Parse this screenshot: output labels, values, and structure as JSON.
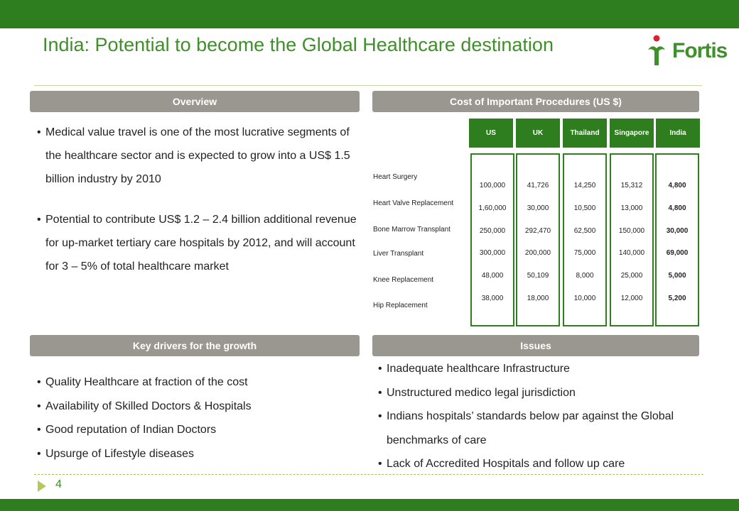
{
  "slide": {
    "title": "India: Potential to become the Global Healthcare destination",
    "logo_text": "Fortis",
    "page_number": "4"
  },
  "colors": {
    "brand_green": "#2e7d1f",
    "title_green": "#3f8f2a",
    "header_gray": "#9a9690"
  },
  "overview": {
    "header": "Overview",
    "bullets": [
      "Medical value travel is one of the most lucrative segments of the healthcare sector and is expected to grow into a US$ 1.5 billion industry by 2010",
      "Potential to contribute US$ 1.2 – 2.4 billion additional revenue for up-market tertiary care hospitals by 2012, and will account for 3 – 5% of total healthcare market"
    ]
  },
  "costs": {
    "header": "Cost  of Important Procedures (US $)",
    "columns": [
      "US",
      "UK",
      "Thailand",
      "Singapore",
      "India"
    ],
    "rows": [
      {
        "label": "Heart Surgery",
        "values": [
          "100,000",
          "41,726",
          "14,250",
          "15,312",
          "4,800"
        ]
      },
      {
        "label": "Heart Valve Replacement",
        "values": [
          "1,60,000",
          "30,000",
          "10,500",
          "13,000",
          "4,800"
        ]
      },
      {
        "label": "Bone Marrow Transplant",
        "values": [
          "250,000",
          "292,470",
          "62,500",
          "150,000",
          "30,000"
        ]
      },
      {
        "label": "Liver Transplant",
        "values": [
          "300,000",
          "200,000",
          "75,000",
          "140,000",
          "69,000"
        ]
      },
      {
        "label": "Knee Replacement",
        "values": [
          "48,000",
          "50,109",
          "8,000",
          "25,000",
          "5,000"
        ]
      },
      {
        "label": "Hip Replacement",
        "values": [
          "38,000",
          "18,000",
          "10,000",
          "12,000",
          "5,200"
        ]
      }
    ]
  },
  "drivers": {
    "header": "Key drivers for the growth",
    "bullets": [
      "Quality Healthcare at fraction of the cost",
      "Availability of Skilled Doctors & Hospitals",
      "Good reputation of Indian Doctors",
      "Upsurge of Lifestyle diseases"
    ]
  },
  "issues": {
    "header": "Issues",
    "bullets": [
      "Inadequate healthcare Infrastructure",
      "Unstructured medico legal jurisdiction",
      "Indians hospitals’ standards below par against the Global benchmarks of care",
      "Lack of Accredited Hospitals and follow up care"
    ]
  }
}
